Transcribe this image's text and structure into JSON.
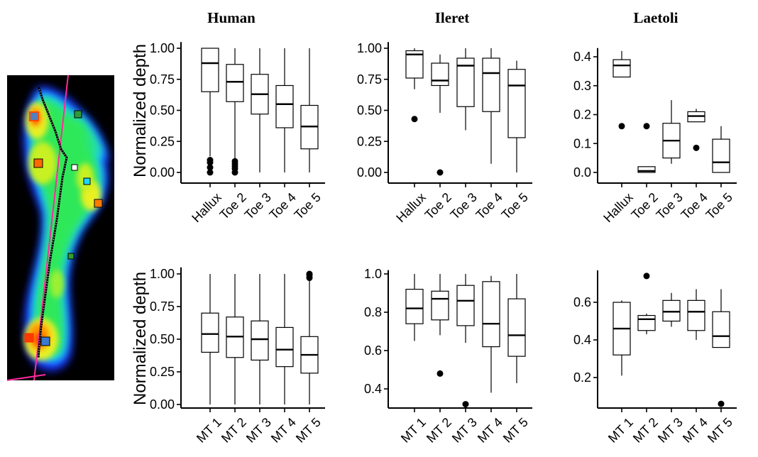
{
  "figure": {
    "column_titles": [
      "Human",
      "Ileret",
      "Laetoli"
    ],
    "row_ylabels": [
      "Normalized depth",
      "Normalized depth"
    ]
  },
  "footprint": {
    "description_icon": "footprint-heatmap-icon"
  },
  "chart_data": [
    {
      "id": "human-toes",
      "type": "boxplot",
      "title": "Human",
      "ylabel": "Normalized depth",
      "ylim": [
        0,
        1.05
      ],
      "yticks": [
        0,
        0.25,
        0.5,
        0.75,
        1.0
      ],
      "ytick_labels": [
        "0.00",
        "0.25",
        "0.50",
        "0.75",
        "1.00"
      ],
      "categories": [
        "Hallux",
        "Toe 2",
        "Toe 3",
        "Toe 4",
        "Toe 5"
      ],
      "boxes": [
        {
          "whislo": 0.13,
          "q1": 0.65,
          "med": 0.88,
          "q3": 1.0,
          "whishi": 1.0,
          "fliers": [
            0.0,
            0.04,
            0.08,
            0.1
          ]
        },
        {
          "whislo": 0.1,
          "q1": 0.57,
          "med": 0.73,
          "q3": 0.87,
          "whishi": 1.0,
          "fliers": [
            0.0,
            0.03,
            0.05,
            0.07,
            0.09
          ]
        },
        {
          "whislo": 0.0,
          "q1": 0.47,
          "med": 0.63,
          "q3": 0.79,
          "whishi": 1.0,
          "fliers": []
        },
        {
          "whislo": 0.0,
          "q1": 0.36,
          "med": 0.55,
          "q3": 0.7,
          "whishi": 1.0,
          "fliers": []
        },
        {
          "whislo": 0.0,
          "q1": 0.19,
          "med": 0.37,
          "q3": 0.54,
          "whishi": 1.0,
          "fliers": []
        }
      ]
    },
    {
      "id": "ileret-toes",
      "type": "boxplot",
      "title": "Ileret",
      "ylabel": "",
      "ylim": [
        0,
        1.05
      ],
      "yticks": [
        0,
        0.25,
        0.5,
        0.75,
        1.0
      ],
      "ytick_labels": [
        "0.00",
        "0.25",
        "0.50",
        "0.75",
        "1.00"
      ],
      "categories": [
        "Hallux",
        "Toe 2",
        "Toe 3",
        "Toe 4",
        "Toe 5"
      ],
      "boxes": [
        {
          "whislo": 0.67,
          "q1": 0.76,
          "med": 0.95,
          "q3": 0.98,
          "whishi": 1.0,
          "fliers": [
            0.43
          ]
        },
        {
          "whislo": 0.48,
          "q1": 0.7,
          "med": 0.74,
          "q3": 0.88,
          "whishi": 0.95,
          "fliers": [
            0.0
          ]
        },
        {
          "whislo": 0.34,
          "q1": 0.53,
          "med": 0.86,
          "q3": 0.92,
          "whishi": 1.0,
          "fliers": []
        },
        {
          "whislo": 0.07,
          "q1": 0.49,
          "med": 0.8,
          "q3": 0.92,
          "whishi": 1.0,
          "fliers": []
        },
        {
          "whislo": 0.0,
          "q1": 0.28,
          "med": 0.7,
          "q3": 0.83,
          "whishi": 0.9,
          "fliers": []
        }
      ]
    },
    {
      "id": "laetoli-toes",
      "type": "boxplot",
      "title": "Laetoli",
      "ylabel": "",
      "ylim": [
        -0.01,
        0.43
      ],
      "yticks": [
        0,
        0.1,
        0.2,
        0.3,
        0.4
      ],
      "ytick_labels": [
        "0.0",
        "0.1",
        "0.2",
        "0.3",
        "0.4"
      ],
      "categories": [
        "Hallux",
        "Toe 2",
        "Toe 3",
        "Toe 4",
        "Toe 5"
      ],
      "boxes": [
        {
          "whislo": 0.33,
          "q1": 0.33,
          "med": 0.37,
          "q3": 0.39,
          "whishi": 0.42,
          "fliers": [
            0.16
          ]
        },
        {
          "whislo": 0.0,
          "q1": 0.0,
          "med": 0.005,
          "q3": 0.02,
          "whishi": 0.02,
          "fliers": [
            0.16
          ]
        },
        {
          "whislo": 0.03,
          "q1": 0.05,
          "med": 0.11,
          "q3": 0.17,
          "whishi": 0.25,
          "fliers": []
        },
        {
          "whislo": 0.175,
          "q1": 0.175,
          "med": 0.195,
          "q3": 0.21,
          "whishi": 0.22,
          "fliers": [
            0.085
          ]
        },
        {
          "whislo": 0.0,
          "q1": 0.0,
          "med": 0.035,
          "q3": 0.115,
          "whishi": 0.16,
          "fliers": []
        }
      ]
    },
    {
      "id": "human-mt",
      "type": "boxplot",
      "title": "",
      "ylabel": "Normalized depth",
      "ylim": [
        -0.02,
        1.05
      ],
      "yticks": [
        0,
        0.25,
        0.5,
        0.75,
        1.0
      ],
      "ytick_labels": [
        "0.00",
        "0.25",
        "0.50",
        "0.75",
        "1.00"
      ],
      "categories": [
        "MT 1",
        "MT 2",
        "MT 3",
        "MT 4",
        "MT 5"
      ],
      "boxes": [
        {
          "whislo": 0.0,
          "q1": 0.4,
          "med": 0.54,
          "q3": 0.7,
          "whishi": 1.0,
          "fliers": []
        },
        {
          "whislo": 0.0,
          "q1": 0.36,
          "med": 0.52,
          "q3": 0.67,
          "whishi": 1.0,
          "fliers": []
        },
        {
          "whislo": 0.0,
          "q1": 0.34,
          "med": 0.5,
          "q3": 0.64,
          "whishi": 1.0,
          "fliers": []
        },
        {
          "whislo": 0.0,
          "q1": 0.29,
          "med": 0.42,
          "q3": 0.59,
          "whishi": 1.0,
          "fliers": []
        },
        {
          "whislo": 0.0,
          "q1": 0.24,
          "med": 0.38,
          "q3": 0.52,
          "whishi": 0.96,
          "fliers": [
            0.97,
            0.99,
            1.0
          ]
        }
      ]
    },
    {
      "id": "ileret-mt",
      "type": "boxplot",
      "title": "",
      "ylabel": "",
      "ylim": [
        0.31,
        1.02
      ],
      "yticks": [
        0.4,
        0.6,
        0.8,
        1.0
      ],
      "ytick_labels": [
        "0.4",
        "0.6",
        "0.8",
        "1.0"
      ],
      "categories": [
        "MT 1",
        "MT 2",
        "MT 3",
        "MT 4",
        "MT 5"
      ],
      "boxes": [
        {
          "whislo": 0.65,
          "q1": 0.74,
          "med": 0.82,
          "q3": 0.92,
          "whishi": 1.0,
          "fliers": []
        },
        {
          "whislo": 0.68,
          "q1": 0.76,
          "med": 0.87,
          "q3": 0.91,
          "whishi": 1.0,
          "fliers": [
            0.48
          ]
        },
        {
          "whislo": 0.64,
          "q1": 0.73,
          "med": 0.86,
          "q3": 0.94,
          "whishi": 1.0,
          "fliers": [
            0.32
          ]
        },
        {
          "whislo": 0.38,
          "q1": 0.62,
          "med": 0.74,
          "q3": 0.96,
          "whishi": 0.99,
          "fliers": []
        },
        {
          "whislo": 0.43,
          "q1": 0.57,
          "med": 0.68,
          "q3": 0.87,
          "whishi": 1.0,
          "fliers": []
        }
      ]
    },
    {
      "id": "laetoli-mt",
      "type": "boxplot",
      "title": "",
      "ylabel": "",
      "ylim": [
        0.05,
        0.77
      ],
      "yticks": [
        0.2,
        0.4,
        0.6
      ],
      "ytick_labels": [
        "0.2",
        "0.4",
        "0.6"
      ],
      "categories": [
        "MT 1",
        "MT 2",
        "MT 3",
        "MT 4",
        "MT 5"
      ],
      "boxes": [
        {
          "whislo": 0.21,
          "q1": 0.32,
          "med": 0.46,
          "q3": 0.6,
          "whishi": 0.61,
          "fliers": []
        },
        {
          "whislo": 0.43,
          "q1": 0.45,
          "med": 0.51,
          "q3": 0.53,
          "whishi": 0.54,
          "fliers": [
            0.74
          ]
        },
        {
          "whislo": 0.47,
          "q1": 0.5,
          "med": 0.55,
          "q3": 0.61,
          "whishi": 0.65,
          "fliers": []
        },
        {
          "whislo": 0.4,
          "q1": 0.45,
          "med": 0.55,
          "q3": 0.61,
          "whishi": 0.67,
          "fliers": []
        },
        {
          "whislo": 0.36,
          "q1": 0.36,
          "med": 0.42,
          "q3": 0.55,
          "whishi": 0.67,
          "fliers": [
            0.06
          ]
        }
      ]
    }
  ]
}
